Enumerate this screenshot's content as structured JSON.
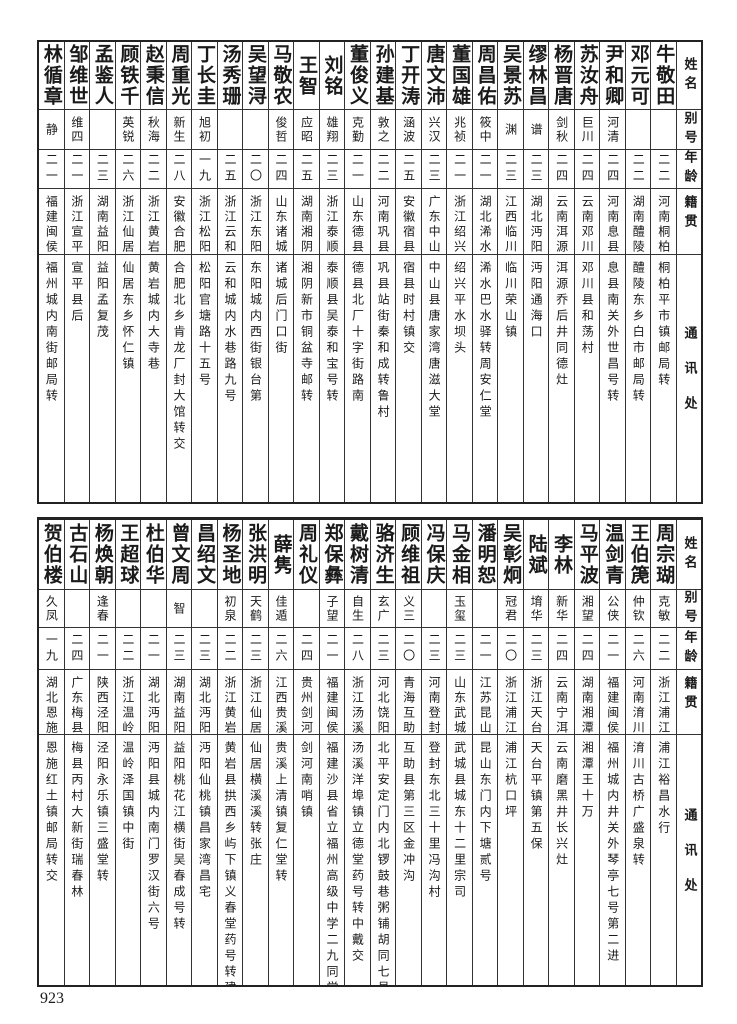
{
  "headers": {
    "name": "姓名",
    "alias": "别号",
    "age": "年龄",
    "origin": "籍贯",
    "address": "通讯处"
  },
  "table_top": [
    {
      "name": "牛敬田",
      "alias": "",
      "age": "二二",
      "origin": "河南桐柏",
      "address": "桐柏平市镇邮局转"
    },
    {
      "name": "邓元可",
      "alias": "",
      "age": "二二",
      "origin": "湖南醴陵",
      "address": "醴陵东乡白市邮局转"
    },
    {
      "name": "尹和卿",
      "alias": "河清",
      "age": "二四",
      "origin": "河南息县",
      "address": "息县南关外世昌号转"
    },
    {
      "name": "苏汝舟",
      "alias": "巨川",
      "age": "二四",
      "origin": "云南邓川",
      "address": "邓川县和荡村"
    },
    {
      "name": "杨晋唐",
      "alias": "剑秋",
      "age": "二四",
      "origin": "云南洱源",
      "address": "洱源乔后井同德灶"
    },
    {
      "name": "缪林昌",
      "alias": "谱",
      "age": "二三",
      "origin": "湖北沔阳",
      "address": "沔阳通海口"
    },
    {
      "name": "吴景苏",
      "alias": "渊",
      "age": "二三",
      "origin": "江西临川",
      "address": "临川荣山镇"
    },
    {
      "name": "周昌佑",
      "alias": "筱中",
      "age": "二一",
      "origin": "湖北浠水",
      "address": "浠水巴水驿转周安仁堂"
    },
    {
      "name": "董国雄",
      "alias": "兆祯",
      "age": "二一",
      "origin": "浙江绍兴",
      "address": "绍兴平水坝头"
    },
    {
      "name": "唐文沛",
      "alias": "兴汉",
      "age": "二三",
      "origin": "广东中山",
      "address": "中山县唐家湾唐滋大堂"
    },
    {
      "name": "丁开涛",
      "alias": "涵波",
      "age": "二五",
      "origin": "安徽宿县",
      "address": "宿县时村镇交"
    },
    {
      "name": "孙建基",
      "alias": "敦之",
      "age": "二二",
      "origin": "河南巩县",
      "address": "巩县站街秦和成转鲁村"
    },
    {
      "name": "董俊义",
      "alias": "克勤",
      "age": "二一",
      "origin": "山东德县",
      "address": "德县北厂十字街路南"
    },
    {
      "name": "刘铭",
      "alias": "雄翔",
      "age": "二三",
      "origin": "浙江泰顺",
      "address": "泰顺县吴泰和宝号转"
    },
    {
      "name": "王智",
      "alias": "应昭",
      "age": "二五",
      "origin": "湖南湘阴",
      "address": "湘阴新市铜盆寺邮转"
    },
    {
      "name": "马敬农",
      "alias": "俊哲",
      "age": "二四",
      "origin": "山东诸城",
      "address": "诸城后门口街"
    },
    {
      "name": "吴望浔",
      "alias": "",
      "age": "二〇",
      "origin": "浙江东阳",
      "address": "东阳城内西街银台第"
    },
    {
      "name": "汤秀珊",
      "alias": "",
      "age": "二五",
      "origin": "浙江云和",
      "address": "云和城内水巷路九号"
    },
    {
      "name": "丁长圭",
      "alias": "旭初",
      "age": "一九",
      "origin": "浙江松阳",
      "address": "松阳官塘路十五号"
    },
    {
      "name": "周重光",
      "alias": "新生",
      "age": "二八",
      "origin": "安徽合肥",
      "address": "合肥北乡肯龙厂封大馆转交"
    },
    {
      "name": "赵秉信",
      "alias": "秋海",
      "age": "二二",
      "origin": "浙江黄岩",
      "address": "黄岩城内大寺巷"
    },
    {
      "name": "顾铁千",
      "alias": "英锐",
      "age": "二六",
      "origin": "浙江仙居",
      "address": "仙居东乡怀仁镇"
    },
    {
      "name": "孟鉴人",
      "alias": "",
      "age": "二三",
      "origin": "湖南益阳",
      "address": "益阳孟复茂"
    },
    {
      "name": "邹维世",
      "alias": "维四",
      "age": "二一",
      "origin": "浙江宣平",
      "address": "宣平县后"
    },
    {
      "name": "林循章",
      "alias": "静",
      "age": "二一",
      "origin": "福建闽侯",
      "address": "福州城内南街邮局转"
    }
  ],
  "table_bottom": [
    {
      "name": "周宗瑚",
      "alias": "克敏",
      "age": "二二",
      "origin": "浙江浦江",
      "address": "浦江裕昌水行"
    },
    {
      "name": "王伯箎",
      "alias": "仲钦",
      "age": "二六",
      "origin": "河南淯川",
      "address": "淯川古桥广盛泉转"
    },
    {
      "name": "温剑青",
      "alias": "公侠",
      "age": "二一",
      "origin": "福建闽侯",
      "address": "福州城内井关外琴亭七号第二进"
    },
    {
      "name": "马平波",
      "alias": "湘望",
      "age": "二四",
      "origin": "湖南湘潭",
      "address": "湘潭王十万"
    },
    {
      "name": "李林",
      "alias": "新华",
      "age": "二四",
      "origin": "云南宁洱",
      "address": "云南磨黑井长兴灶"
    },
    {
      "name": "陆斌",
      "alias": "堉华",
      "age": "二三",
      "origin": "浙江天台",
      "address": "天台平镇第五保"
    },
    {
      "name": "吴彰炯",
      "alias": "冠君",
      "age": "二〇",
      "origin": "浙江浦江",
      "address": "浦江杭口坪"
    },
    {
      "name": "潘明恕",
      "alias": "",
      "age": "二一",
      "origin": "江苏昆山",
      "address": "昆山东门内下塘贰号"
    },
    {
      "name": "马金相",
      "alias": "玉玺",
      "age": "二三",
      "origin": "山东武城",
      "address": "武城县城东十二里宗司"
    },
    {
      "name": "冯保庆",
      "alias": "",
      "age": "二三",
      "origin": "河南登封",
      "address": "登封东北三十里冯沟村"
    },
    {
      "name": "顾维祖",
      "alias": "义三",
      "age": "二〇",
      "origin": "青海互助",
      "address": "互助县第三区金冲沟"
    },
    {
      "name": "骆济生",
      "alias": "玄广",
      "age": "二三",
      "origin": "河北饶阳",
      "address": "北平安定门内北锣鼓巷粥铺胡同七号"
    },
    {
      "name": "戴树清",
      "alias": "自生",
      "age": "二八",
      "origin": "浙江汤溪",
      "address": "汤溪洋埠镇立德堂药号转中戴交"
    },
    {
      "name": "郑保彝",
      "alias": "子望",
      "age": "二一",
      "origin": "福建闽侯",
      "address": "福建沙县省立福州高级中学二九同学会转"
    },
    {
      "name": "周礼仪",
      "alias": "",
      "age": "二四",
      "origin": "贵州剑河",
      "address": "剑河南哨镇"
    },
    {
      "name": "薛隽",
      "alias": "佳遁",
      "age": "二六",
      "origin": "江西贵溪",
      "address": "贵溪上清镇复仁堂转"
    },
    {
      "name": "张洪明",
      "alias": "天鹤",
      "age": "二三",
      "origin": "浙江仙居",
      "address": "仙居横溪溪转张庄"
    },
    {
      "name": "杨圣地",
      "alias": "初泉",
      "age": "二二",
      "origin": "浙江黄岩",
      "address": "黄岩县拱西乡屿下镇义春堂药号转建山"
    },
    {
      "name": "昌绍文",
      "alias": "",
      "age": "二三",
      "origin": "湖北沔阳",
      "address": "沔阳仙桃镇昌家湾昌宅"
    },
    {
      "name": "曾文周",
      "alias": "智",
      "age": "二三",
      "origin": "湖南益阳",
      "address": "益阳桃花江横街吴春成号转"
    },
    {
      "name": "杜伯华",
      "alias": "",
      "age": "二一",
      "origin": "湖北沔阳",
      "address": "沔阳县城内南门罗汉街六号"
    },
    {
      "name": "王超球",
      "alias": "",
      "age": "二二",
      "origin": "浙江温岭",
      "address": "温岭泽国镇中街"
    },
    {
      "name": "杨焕朝",
      "alias": "逢春",
      "age": "二一",
      "origin": "陕西泾阳",
      "address": "泾阳永乐镇三盛堂转"
    },
    {
      "name": "古石山",
      "alias": "",
      "age": "二四",
      "origin": "广东梅县",
      "address": "梅县丙村大新街瑞春林"
    },
    {
      "name": "贺伯楼",
      "alias": "久凤",
      "age": "一九",
      "origin": "湖北恩施",
      "address": "恩施红土镇邮局转交"
    }
  ],
  "page_number": "923"
}
